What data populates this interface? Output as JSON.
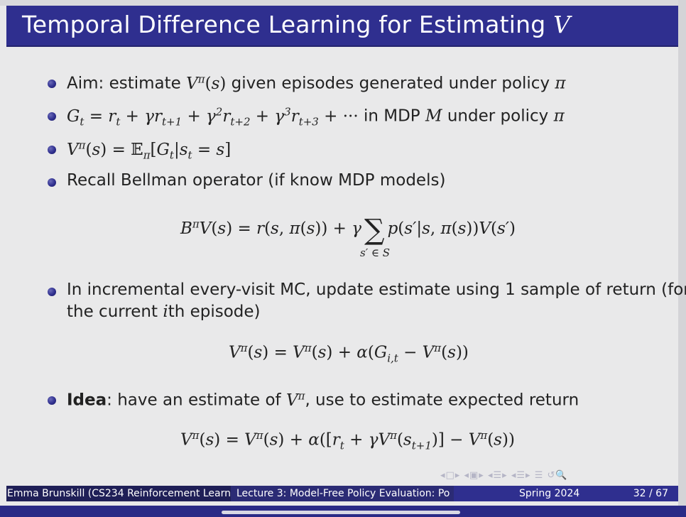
{
  "slide": {
    "title": "Temporal Difference Learning for Estimating ",
    "title_var": "V",
    "bullets": {
      "b1_text": "Aim: estimate ",
      "b1_rest": " given episodes generated under policy ",
      "b2_text": " in MDP ",
      "b2_rest": " under policy ",
      "b4_text": "Recall Bellman operator (if know MDP models)",
      "b5_line1": "In incremental every-visit MC, update estimate using 1 sample of return (for",
      "b5_line2a": "the current ",
      "b5_line2b": "th episode)",
      "b6_bold": "Idea",
      "b6_text": ": have an estimate of ",
      "b6_rest": ", use to estimate expected return"
    },
    "math": {
      "sym_pi": "π",
      "sym_M": "M",
      "sym_i": "i",
      "vpi_s": "V^π(s)",
      "vpi": "V^π",
      "G_eq": "G_t = r_t + γr_{t+1} + γ²r_{t+2} + γ³r_{t+3} + ···",
      "V_def": "V^π(s) = 𝔼_π[G_t|s_t = s]",
      "bellman_lhs": "B^π V(s) = r(s, π(s)) + γ",
      "bellman_sum_under": "s′ ∈ S",
      "bellman_rhs": "p(s′|s, π(s))V(s′)",
      "mc_update": "V^π(s) = V^π(s) + α(G_{i,t} − V^π(s))",
      "td_update": "V^π(s) = V^π(s) + α([r_t + γV^π(s_{t+1})] − V^π(s))"
    },
    "footer": {
      "author": "Emma Brunskill (CS234 Reinforcement Learn",
      "lecture": "Lecture 3: Model-Free Policy Evaluation: Po",
      "date": "Spring 2024",
      "page": "32 / 67"
    },
    "navigation_icons": [
      "nav-prev-frame-icon",
      "nav-next-frame-icon",
      "nav-section-icon",
      "nav-subsection-icon",
      "nav-align-icon",
      "nav-search-icon"
    ]
  }
}
